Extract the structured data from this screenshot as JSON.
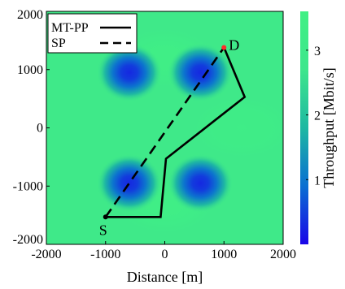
{
  "chart_data": {
    "type": "heatmap",
    "title": "",
    "xlabel": "Distance [m]",
    "ylabel": "",
    "xlim": [
      -2000,
      2000
    ],
    "ylim": [
      -2000,
      2000
    ],
    "x_ticks": [
      -2000,
      -1000,
      0,
      1000,
      2000
    ],
    "y_ticks": [
      -2000,
      -1000,
      0,
      1000,
      2000
    ],
    "x_tick_labels": [
      "-2000",
      "-1000",
      "0",
      "1000",
      "2000"
    ],
    "y_tick_labels": [
      "-2000",
      "-1000",
      "0",
      "1000",
      "2000"
    ],
    "colorbar": {
      "label": "Throughput [Mbit/s]",
      "range": [
        0,
        3.6
      ],
      "ticks": [
        1,
        2,
        3
      ],
      "tick_labels": [
        "1",
        "2",
        "3"
      ],
      "colors": [
        "#1a05e8",
        "#0a6fd2",
        "#1eb8a2",
        "#3ee68c",
        "#40f084"
      ]
    },
    "field": {
      "background_value": 3.0,
      "low_regions": [
        {
          "x": -600,
          "y": 950,
          "value": 0.3
        },
        {
          "x": 600,
          "y": 950,
          "value": 0.3
        },
        {
          "x": -600,
          "y": -950,
          "value": 0.3
        },
        {
          "x": 600,
          "y": -950,
          "value": 0.3
        }
      ],
      "high_regions": [
        {
          "x": 0,
          "y": 1200,
          "value": 3.4
        },
        {
          "x": 0,
          "y": -1300,
          "value": 3.4
        },
        {
          "x": 1300,
          "y": 0,
          "value": 3.3
        }
      ]
    },
    "series": [
      {
        "name": "MT-PP",
        "style": "solid",
        "color": "#000000",
        "x": [
          -1000,
          -70,
          20,
          1350,
          1000
        ],
        "y": [
          -1530,
          -1530,
          -530,
          530,
          1380
        ]
      },
      {
        "name": "SP",
        "style": "dashed",
        "color": "#000000",
        "x": [
          -1000,
          1000
        ],
        "y": [
          -1530,
          1380
        ]
      }
    ],
    "points": [
      {
        "label": "S",
        "x": -1000,
        "y": -1530,
        "color": "#000000"
      },
      {
        "label": "D",
        "x": 1000,
        "y": 1380,
        "color": "#ff2a2a"
      }
    ],
    "legend": {
      "placement": "top-left",
      "entries": [
        "MT-PP",
        "SP"
      ]
    },
    "grid": false
  }
}
